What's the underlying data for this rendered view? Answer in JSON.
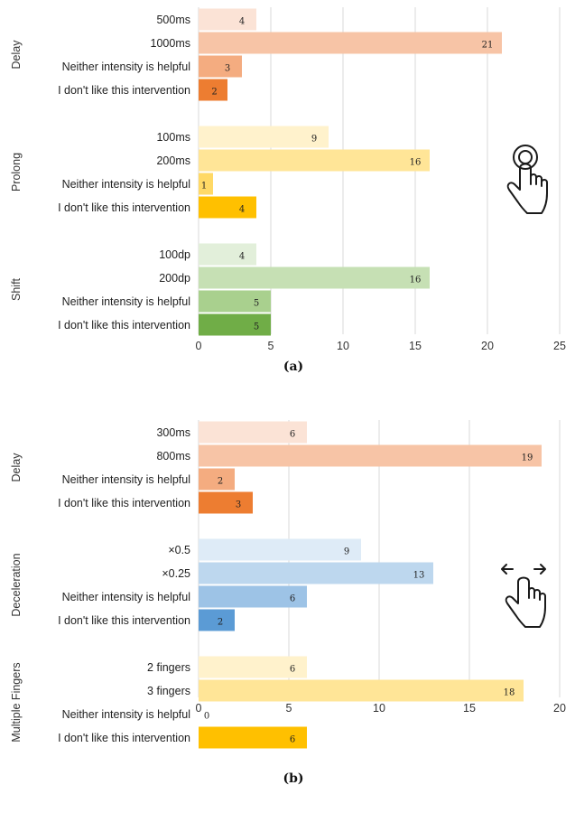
{
  "chart_data": [
    {
      "type": "bar",
      "orientation": "horizontal",
      "caption": "(a)",
      "xlim": [
        0,
        25
      ],
      "xticks": [
        "0",
        "5",
        "10",
        "15",
        "20",
        "25"
      ],
      "grid": true,
      "icon": "tap-hold-gesture-icon",
      "groups": [
        {
          "name": "Delay",
          "categories": [
            "500ms",
            "1000ms",
            "Neither intensity is helpful",
            "I don't like this intervention"
          ],
          "values": [
            4,
            21,
            3,
            2
          ],
          "value_labels": [
            "4",
            "21",
            "3",
            "2"
          ],
          "colors": [
            "#fbe3d6",
            "#f7c4a6",
            "#f4ac80",
            "#ed7d31"
          ]
        },
        {
          "name": "Prolong",
          "categories": [
            "100ms",
            "200ms",
            "Neither intensity is helpful",
            "I don't like this intervention"
          ],
          "values": [
            9,
            16,
            1,
            4
          ],
          "value_labels": [
            "9",
            "16",
            "1",
            "4"
          ],
          "colors": [
            "#fff2cc",
            "#ffe597",
            "#ffd966",
            "#ffc000"
          ]
        },
        {
          "name": "Shift",
          "categories": [
            "100dp",
            "200dp",
            "Neither intensity is helpful",
            "I don't like this intervention"
          ],
          "values": [
            4,
            16,
            5,
            5
          ],
          "value_labels": [
            "4",
            "16",
            "5",
            "5"
          ],
          "colors": [
            "#e2efda",
            "#c6e0b4",
            "#a9d08e",
            "#70ad47"
          ]
        }
      ]
    },
    {
      "type": "bar",
      "orientation": "horizontal",
      "caption": "(b)",
      "xlim": [
        0,
        20
      ],
      "xticks": [
        "0",
        "5",
        "10",
        "15",
        "20"
      ],
      "grid": true,
      "icon": "swipe-gesture-icon",
      "groups": [
        {
          "name": "Delay",
          "categories": [
            "300ms",
            "800ms",
            "Neither intensity is helpful",
            "I don't like this intervention"
          ],
          "values": [
            6,
            19,
            2,
            3
          ],
          "value_labels": [
            "6",
            "19",
            "2",
            "3"
          ],
          "colors": [
            "#fbe3d6",
            "#f7c4a6",
            "#f4ac80",
            "#ed7d31"
          ]
        },
        {
          "name": "Deceleration",
          "categories": [
            "×0.5",
            "×0.25",
            "Neither intensity is helpful",
            "I don't like this intervention"
          ],
          "values": [
            9,
            13,
            6,
            2
          ],
          "value_labels": [
            "9",
            "13",
            "6",
            "2"
          ],
          "colors": [
            "#deebf7",
            "#bdd7ee",
            "#9dc3e6",
            "#5b9bd5"
          ]
        },
        {
          "name": "Multiple Fingers",
          "categories": [
            "2 fingers",
            "3 fingers",
            "Neither intensity is helpful",
            "I don't like this intervention"
          ],
          "values": [
            6,
            18,
            0,
            6
          ],
          "value_labels": [
            "6",
            "18",
            "0",
            "6"
          ],
          "colors": [
            "#fff2cc",
            "#ffe597",
            "#ffd966",
            "#ffc000"
          ]
        }
      ]
    }
  ]
}
